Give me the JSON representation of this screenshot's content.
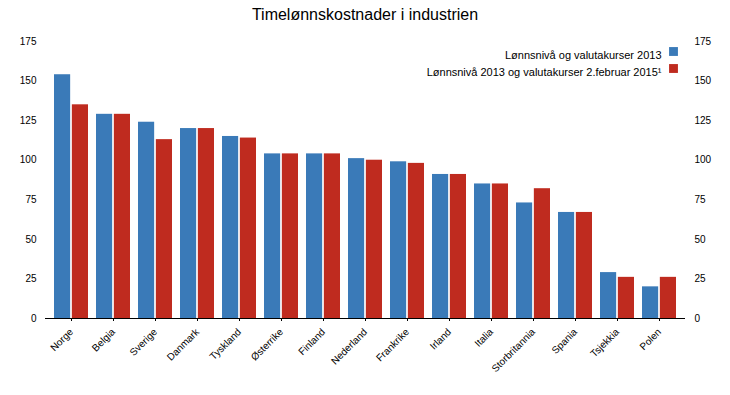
{
  "chart_data": {
    "type": "bar",
    "title": "Timelønnskostnader i industrien",
    "categories": [
      "Norge",
      "Belgia",
      "Sverige",
      "Danmark",
      "Tyskland",
      "Østerrike",
      "Finland",
      "Nederland",
      "Frankrike",
      "Irland",
      "Italia",
      "Storbritannia",
      "Spania",
      "Tsjekkia",
      "Polen"
    ],
    "series": [
      {
        "name": "Lønnsnivå og valutakurser 2013",
        "color": "#3a7ab8",
        "values": [
          154,
          129,
          124,
          120,
          115,
          104,
          104,
          101,
          99,
          91,
          85,
          73,
          67,
          29,
          20
        ]
      },
      {
        "name": "Lønnsnivå 2013 og valutakurser 2.februar 2015¹",
        "color": "#bf2b1f",
        "values": [
          135,
          129,
          113,
          120,
          114,
          104,
          104,
          100,
          98,
          91,
          85,
          82,
          67,
          26,
          26
        ]
      }
    ],
    "ylim": [
      0,
      175
    ],
    "yticks": [
      0,
      25,
      50,
      75,
      100,
      125,
      150,
      175
    ],
    "y2lim": [
      0,
      175
    ],
    "y2ticks": [
      0,
      25,
      50,
      75,
      100,
      125,
      150,
      175
    ],
    "grid": false,
    "legend": "upper right"
  }
}
